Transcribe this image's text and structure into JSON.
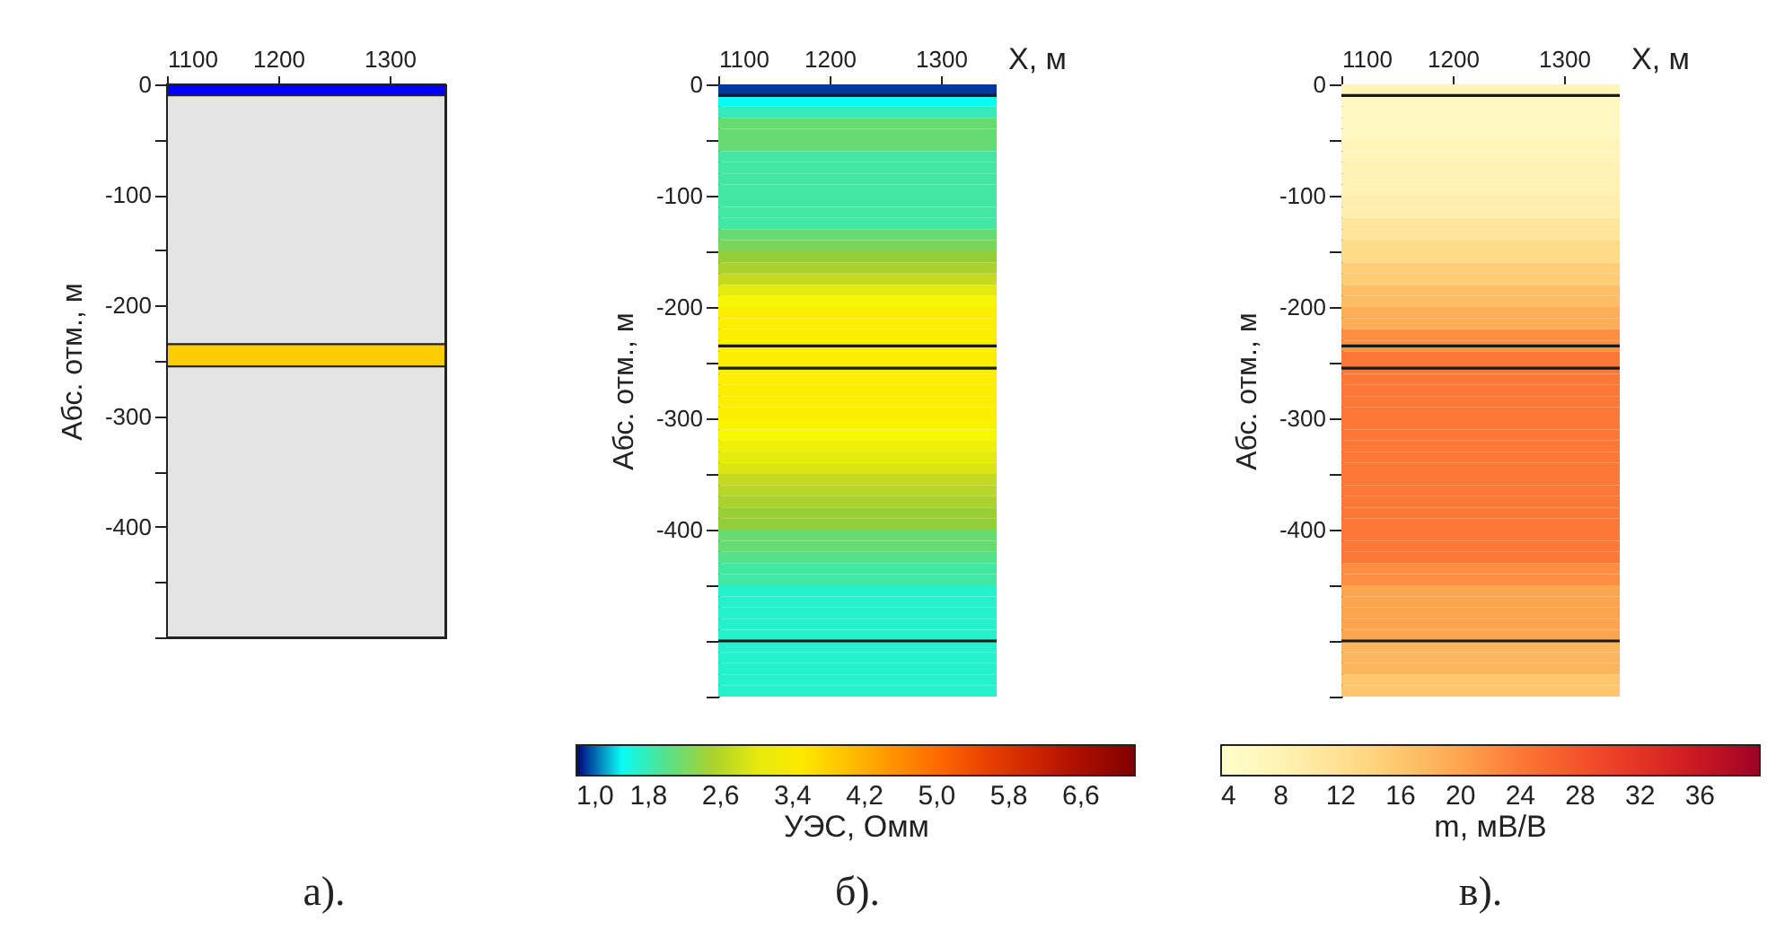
{
  "chart_data": [
    {
      "type": "line",
      "ylabel": "Абс. отм., м",
      "xlim": [
        1100,
        1350
      ],
      "xticks": [
        1100,
        1200,
        1300
      ],
      "ylim": [
        -500,
        0
      ],
      "yticks": [
        0,
        {
          "value": -50,
          "label": null
        },
        -100,
        {
          "value": -150,
          "label": null
        },
        -200,
        {
          "value": -250,
          "label": null
        },
        -300,
        {
          "value": -350,
          "label": null
        },
        -400,
        {
          "value": -450,
          "label": null
        },
        {
          "value": -500,
          "label": null
        }
      ],
      "bands": [
        {
          "axis": "y",
          "from": 0,
          "to": -10,
          "color": "#0000ff"
        },
        {
          "axis": "y",
          "from": -10,
          "to": -235,
          "color": "#e4e4e4"
        },
        {
          "axis": "y",
          "from": -235,
          "to": -255,
          "color": "#ffcc00"
        },
        {
          "axis": "y",
          "from": -255,
          "to": -500,
          "color": "#e4e4e4"
        }
      ],
      "annotations": [
        "а)."
      ]
    },
    {
      "type": "heatmap",
      "xlabel": "X, м",
      "ylabel": "Абс. отм., м",
      "xlim": [
        1100,
        1350
      ],
      "xticks": [
        1100,
        1200,
        1300
      ],
      "ylim": [
        -550,
        0
      ],
      "yticks": [
        0,
        {
          "value": -50,
          "label": null
        },
        -100,
        {
          "value": -150,
          "label": null
        },
        -200,
        {
          "value": -250,
          "label": null
        },
        -300,
        {
          "value": -350,
          "label": null
        },
        -400,
        {
          "value": -450,
          "label": null
        },
        {
          "value": -500,
          "label": null
        },
        {
          "value": -550,
          "label": null
        }
      ],
      "cells": [
        [
          1.1
        ],
        [
          1.5
        ],
        [
          1.8
        ],
        [
          2.1
        ],
        [
          2.1
        ],
        [
          2.1
        ],
        [
          1.9
        ],
        [
          1.9
        ],
        [
          1.9
        ],
        [
          1.9
        ],
        [
          1.9
        ],
        [
          1.9
        ],
        [
          1.9
        ],
        [
          2.1
        ],
        [
          2.2
        ],
        [
          2.35
        ],
        [
          2.5
        ],
        [
          2.7
        ],
        [
          3.0
        ],
        [
          3.2
        ],
        [
          3.4
        ],
        [
          3.4
        ],
        [
          3.4
        ],
        [
          3.4
        ],
        [
          3.4
        ],
        [
          3.4
        ],
        [
          3.4
        ],
        [
          3.4
        ],
        [
          3.4
        ],
        [
          3.4
        ],
        [
          3.3
        ],
        [
          3.2
        ],
        [
          3.1
        ],
        [
          3.0
        ],
        [
          2.9
        ],
        [
          2.7
        ],
        [
          2.6
        ],
        [
          2.5
        ],
        [
          2.4
        ],
        [
          2.35
        ],
        [
          2.1
        ],
        [
          2.1
        ],
        [
          2.0
        ],
        [
          1.9
        ],
        [
          1.9
        ],
        [
          1.7
        ],
        [
          1.7
        ],
        [
          1.7
        ],
        [
          1.7
        ],
        [
          1.7
        ],
        [
          1.7
        ],
        [
          1.7
        ],
        [
          1.7
        ],
        [
          1.7
        ],
        [
          1.7
        ]
      ],
      "clabel": "УЭС, Омм",
      "clim": [
        1.0,
        7.2
      ],
      "cticks": [
        {
          "value": 1.0,
          "label": "1,0"
        },
        {
          "value": 1.8,
          "label": "1,8"
        },
        {
          "value": 2.6,
          "label": "2,6"
        },
        {
          "value": 3.4,
          "label": "3,4"
        },
        {
          "value": 4.2,
          "label": "4,2"
        },
        {
          "value": 5.0,
          "label": "5,0"
        },
        {
          "value": 5.8,
          "label": "5,8"
        },
        {
          "value": 6.6,
          "label": "6,6"
        }
      ],
      "colors": [
        "#00007f",
        "#00ffff",
        "#40e8a8",
        "#90cc38",
        "#d0dc1c",
        "#f8f800",
        "#ffe000",
        "#ffb800",
        "#ff9000",
        "#ff6c00",
        "#f04800",
        "#d83000",
        "#c01800",
        "#a00800",
        "#800000"
      ],
      "ref_lines": [
        {
          "axis": "y",
          "value": -10
        },
        {
          "axis": "y",
          "value": -235
        },
        {
          "axis": "y",
          "value": -255
        },
        {
          "axis": "y",
          "value": -500
        }
      ],
      "annotations": [
        "б)."
      ]
    },
    {
      "type": "heatmap",
      "xlabel": "X, м",
      "ylabel": "Абс. отм., м",
      "xlim": [
        1100,
        1350
      ],
      "xticks": [
        1100,
        1200,
        1300
      ],
      "ylim": [
        -550,
        0
      ],
      "yticks": [
        0,
        {
          "value": -50,
          "label": null
        },
        -100,
        {
          "value": -150,
          "label": null
        },
        -200,
        {
          "value": -250,
          "label": null
        },
        -300,
        {
          "value": -350,
          "label": null
        },
        -400,
        {
          "value": -450,
          "label": null
        },
        {
          "value": -500,
          "label": null
        },
        {
          "value": -550,
          "label": null
        }
      ],
      "cells": [
        [
          7
        ],
        [
          6
        ],
        [
          6
        ],
        [
          6
        ],
        [
          6
        ],
        [
          7
        ],
        [
          7
        ],
        [
          8
        ],
        [
          8
        ],
        [
          8
        ],
        [
          9
        ],
        [
          9
        ],
        [
          11
        ],
        [
          11
        ],
        [
          13
        ],
        [
          13
        ],
        [
          15
        ],
        [
          15
        ],
        [
          17
        ],
        [
          17
        ],
        [
          19
        ],
        [
          19
        ],
        [
          22
        ],
        [
          22
        ],
        [
          24
        ],
        [
          24
        ],
        [
          24
        ],
        [
          24
        ],
        [
          24
        ],
        [
          24
        ],
        [
          24
        ],
        [
          24
        ],
        [
          24
        ],
        [
          24
        ],
        [
          24
        ],
        [
          24
        ],
        [
          24
        ],
        [
          24
        ],
        [
          24
        ],
        [
          24
        ],
        [
          24
        ],
        [
          24
        ],
        [
          24
        ],
        [
          22
        ],
        [
          22
        ],
        [
          20
        ],
        [
          20
        ],
        [
          20
        ],
        [
          20
        ],
        [
          20
        ],
        [
          18
        ],
        [
          18
        ],
        [
          18
        ],
        [
          16
        ],
        [
          16
        ]
      ],
      "clabel": "m, мВ/В",
      "clim": [
        4,
        40
      ],
      "cticks": [
        4,
        8,
        12,
        16,
        20,
        24,
        28,
        32,
        36
      ],
      "colors": [
        "#ffffcc",
        "#ffeeac",
        "#fed47c",
        "#fdaa52",
        "#fc7232",
        "#f04428",
        "#d41e22",
        "#a00026"
      ],
      "ref_lines": [
        {
          "axis": "y",
          "value": -10
        },
        {
          "axis": "y",
          "value": -235
        },
        {
          "axis": "y",
          "value": -255
        },
        {
          "axis": "y",
          "value": -500
        }
      ],
      "annotations": [
        "в)."
      ]
    }
  ]
}
